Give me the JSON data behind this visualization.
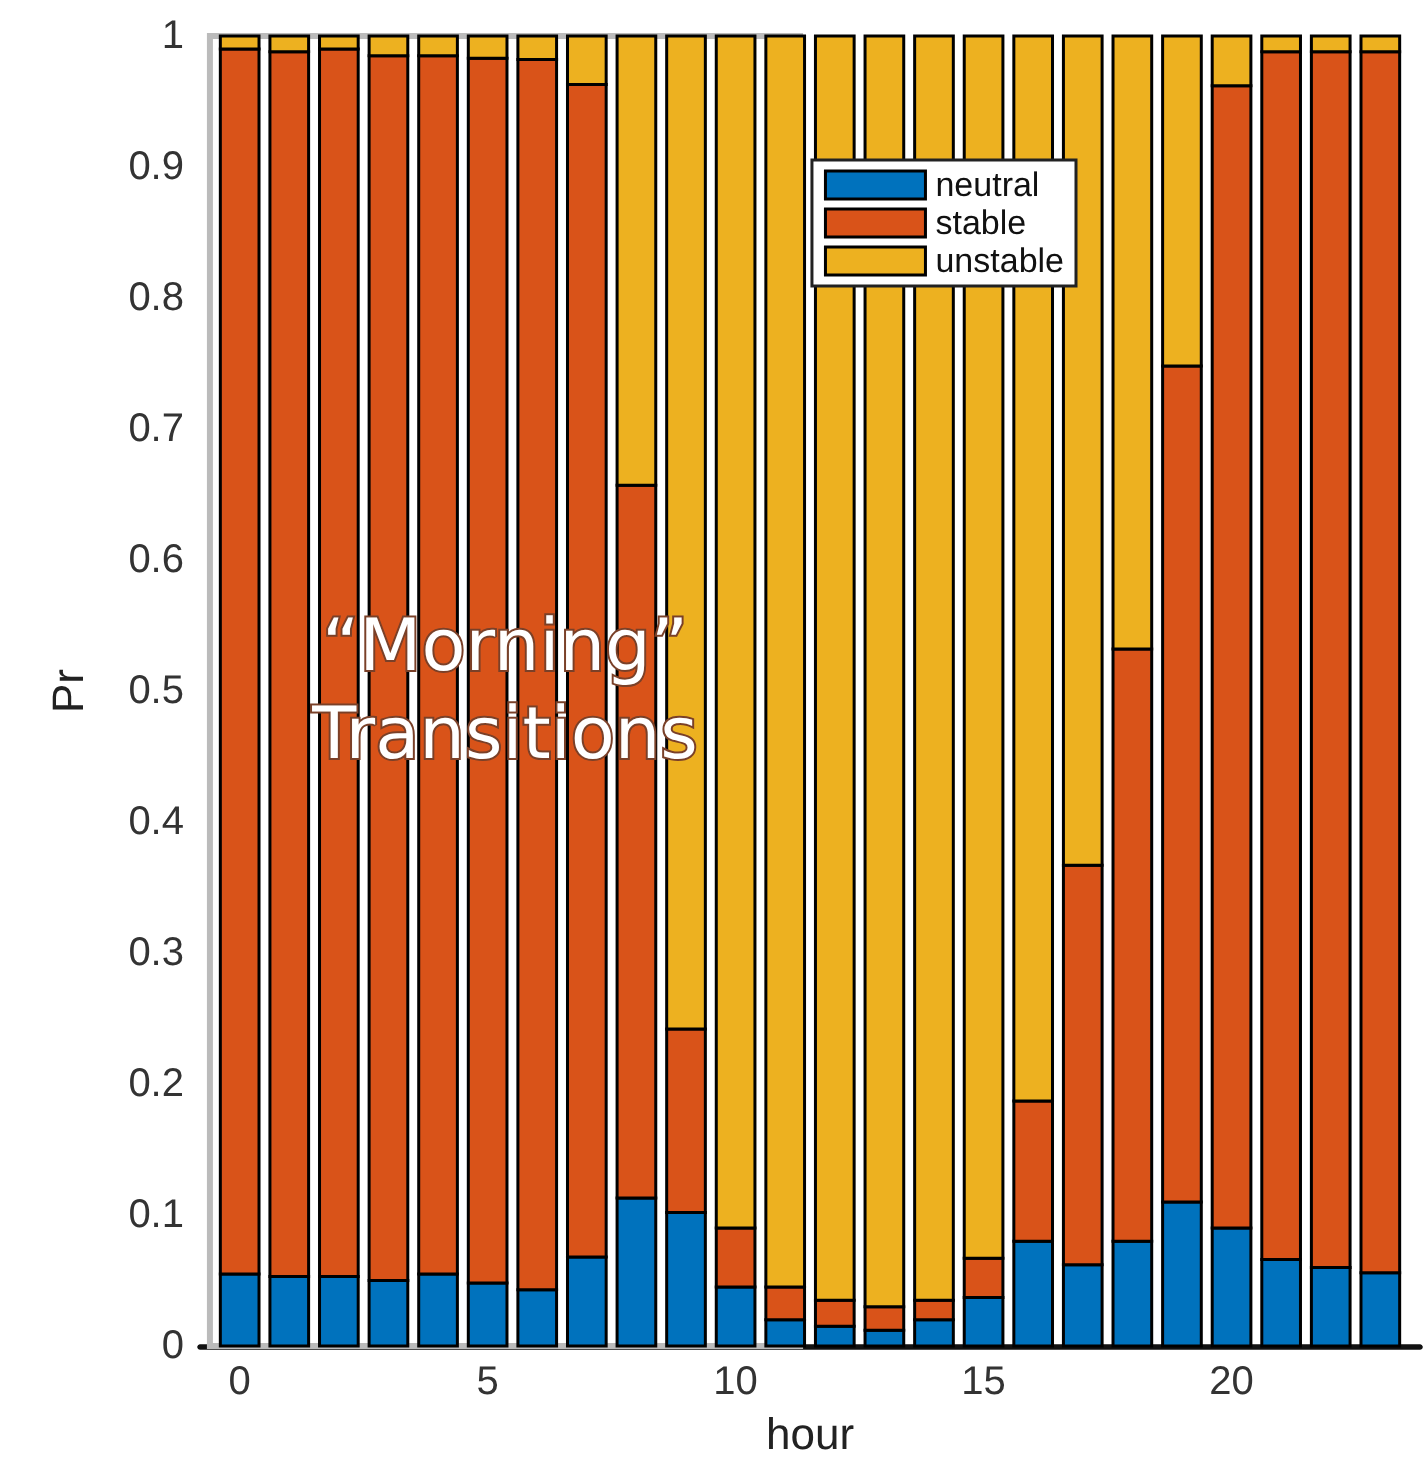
{
  "chart_data": {
    "type": "bar",
    "stacked": true,
    "xlabel": "hour",
    "ylabel": "Pr",
    "x": [
      0,
      1,
      2,
      3,
      4,
      5,
      6,
      7,
      8,
      9,
      10,
      11,
      12,
      13,
      14,
      15,
      16,
      17,
      18,
      19,
      20,
      21,
      22,
      23
    ],
    "series": [
      {
        "name": "neutral",
        "color": "#0072bd",
        "values": [
          0.055,
          0.053,
          0.053,
          0.05,
          0.055,
          0.048,
          0.043,
          0.068,
          0.113,
          0.102,
          0.045,
          0.02,
          0.015,
          0.012,
          0.02,
          0.037,
          0.08,
          0.062,
          0.08,
          0.11,
          0.09,
          0.066,
          0.06,
          0.056
        ]
      },
      {
        "name": "stable",
        "color": "#d95319",
        "values": [
          0.935,
          0.935,
          0.937,
          0.935,
          0.93,
          0.935,
          0.939,
          0.895,
          0.544,
          0.14,
          0.045,
          0.025,
          0.02,
          0.018,
          0.015,
          0.03,
          0.107,
          0.305,
          0.452,
          0.638,
          0.872,
          0.922,
          0.928,
          0.932
        ]
      },
      {
        "name": "unstable",
        "color": "#edb120",
        "values": [
          0.01,
          0.012,
          0.01,
          0.015,
          0.015,
          0.017,
          0.018,
          0.037,
          0.343,
          0.758,
          0.91,
          0.955,
          0.965,
          0.97,
          0.965,
          0.933,
          0.813,
          0.633,
          0.468,
          0.252,
          0.038,
          0.012,
          0.012,
          0.012
        ]
      }
    ],
    "xlim": [
      -0.8,
      23.8
    ],
    "xticks": [
      0,
      5,
      10,
      15,
      20
    ],
    "ylim": [
      0,
      1
    ],
    "yticks": [
      0,
      0.1,
      0.2,
      0.3,
      0.4,
      0.5,
      0.6,
      0.7,
      0.8,
      0.9,
      1
    ],
    "bands": [
      {
        "axis": "x",
        "from": -0.6,
        "to": 11.3,
        "label": "“Morning”\nTransitions",
        "color": "#ffffff"
      }
    ],
    "legend": "top right",
    "grid": false
  }
}
